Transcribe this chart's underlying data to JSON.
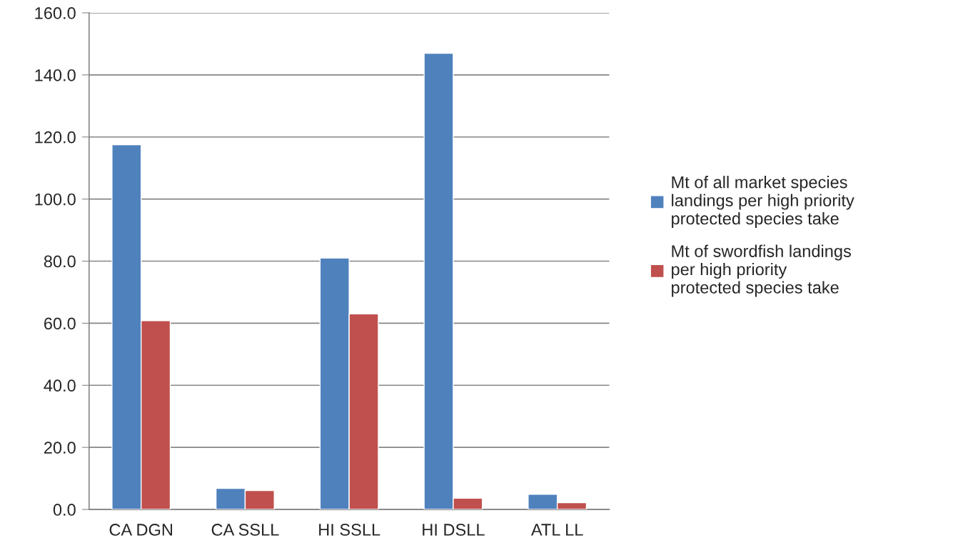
{
  "chart_data": {
    "type": "bar",
    "categories": [
      "CA DGN",
      "CA SSLL",
      "HI SSLL",
      "HI DSLL",
      "ATL LL"
    ],
    "series": [
      {
        "name": "Mt of all market species\nlandings per high priority\nprotected species take",
        "color": "#4f81bd",
        "values": [
          117.5,
          6.8,
          81.0,
          147.0,
          4.9
        ]
      },
      {
        "name": "Mt of swordfish landings\nper high priority\nprotected species take",
        "color": "#c0504d",
        "values": [
          60.8,
          6.1,
          63.0,
          3.6,
          2.2
        ]
      }
    ],
    "ylim": [
      0,
      160
    ],
    "yticks": [
      {
        "value": 0,
        "label": "0.0"
      },
      {
        "value": 20,
        "label": "20.0"
      },
      {
        "value": 40,
        "label": "40.0"
      },
      {
        "value": 60,
        "label": "60.0"
      },
      {
        "value": 80,
        "label": "80.0"
      },
      {
        "value": 100,
        "label": "100.0"
      },
      {
        "value": 120,
        "label": "120.0"
      },
      {
        "value": 140,
        "label": "140.0"
      },
      {
        "value": 160,
        "label": "160.0"
      }
    ],
    "grid": "y",
    "legend": "right"
  }
}
